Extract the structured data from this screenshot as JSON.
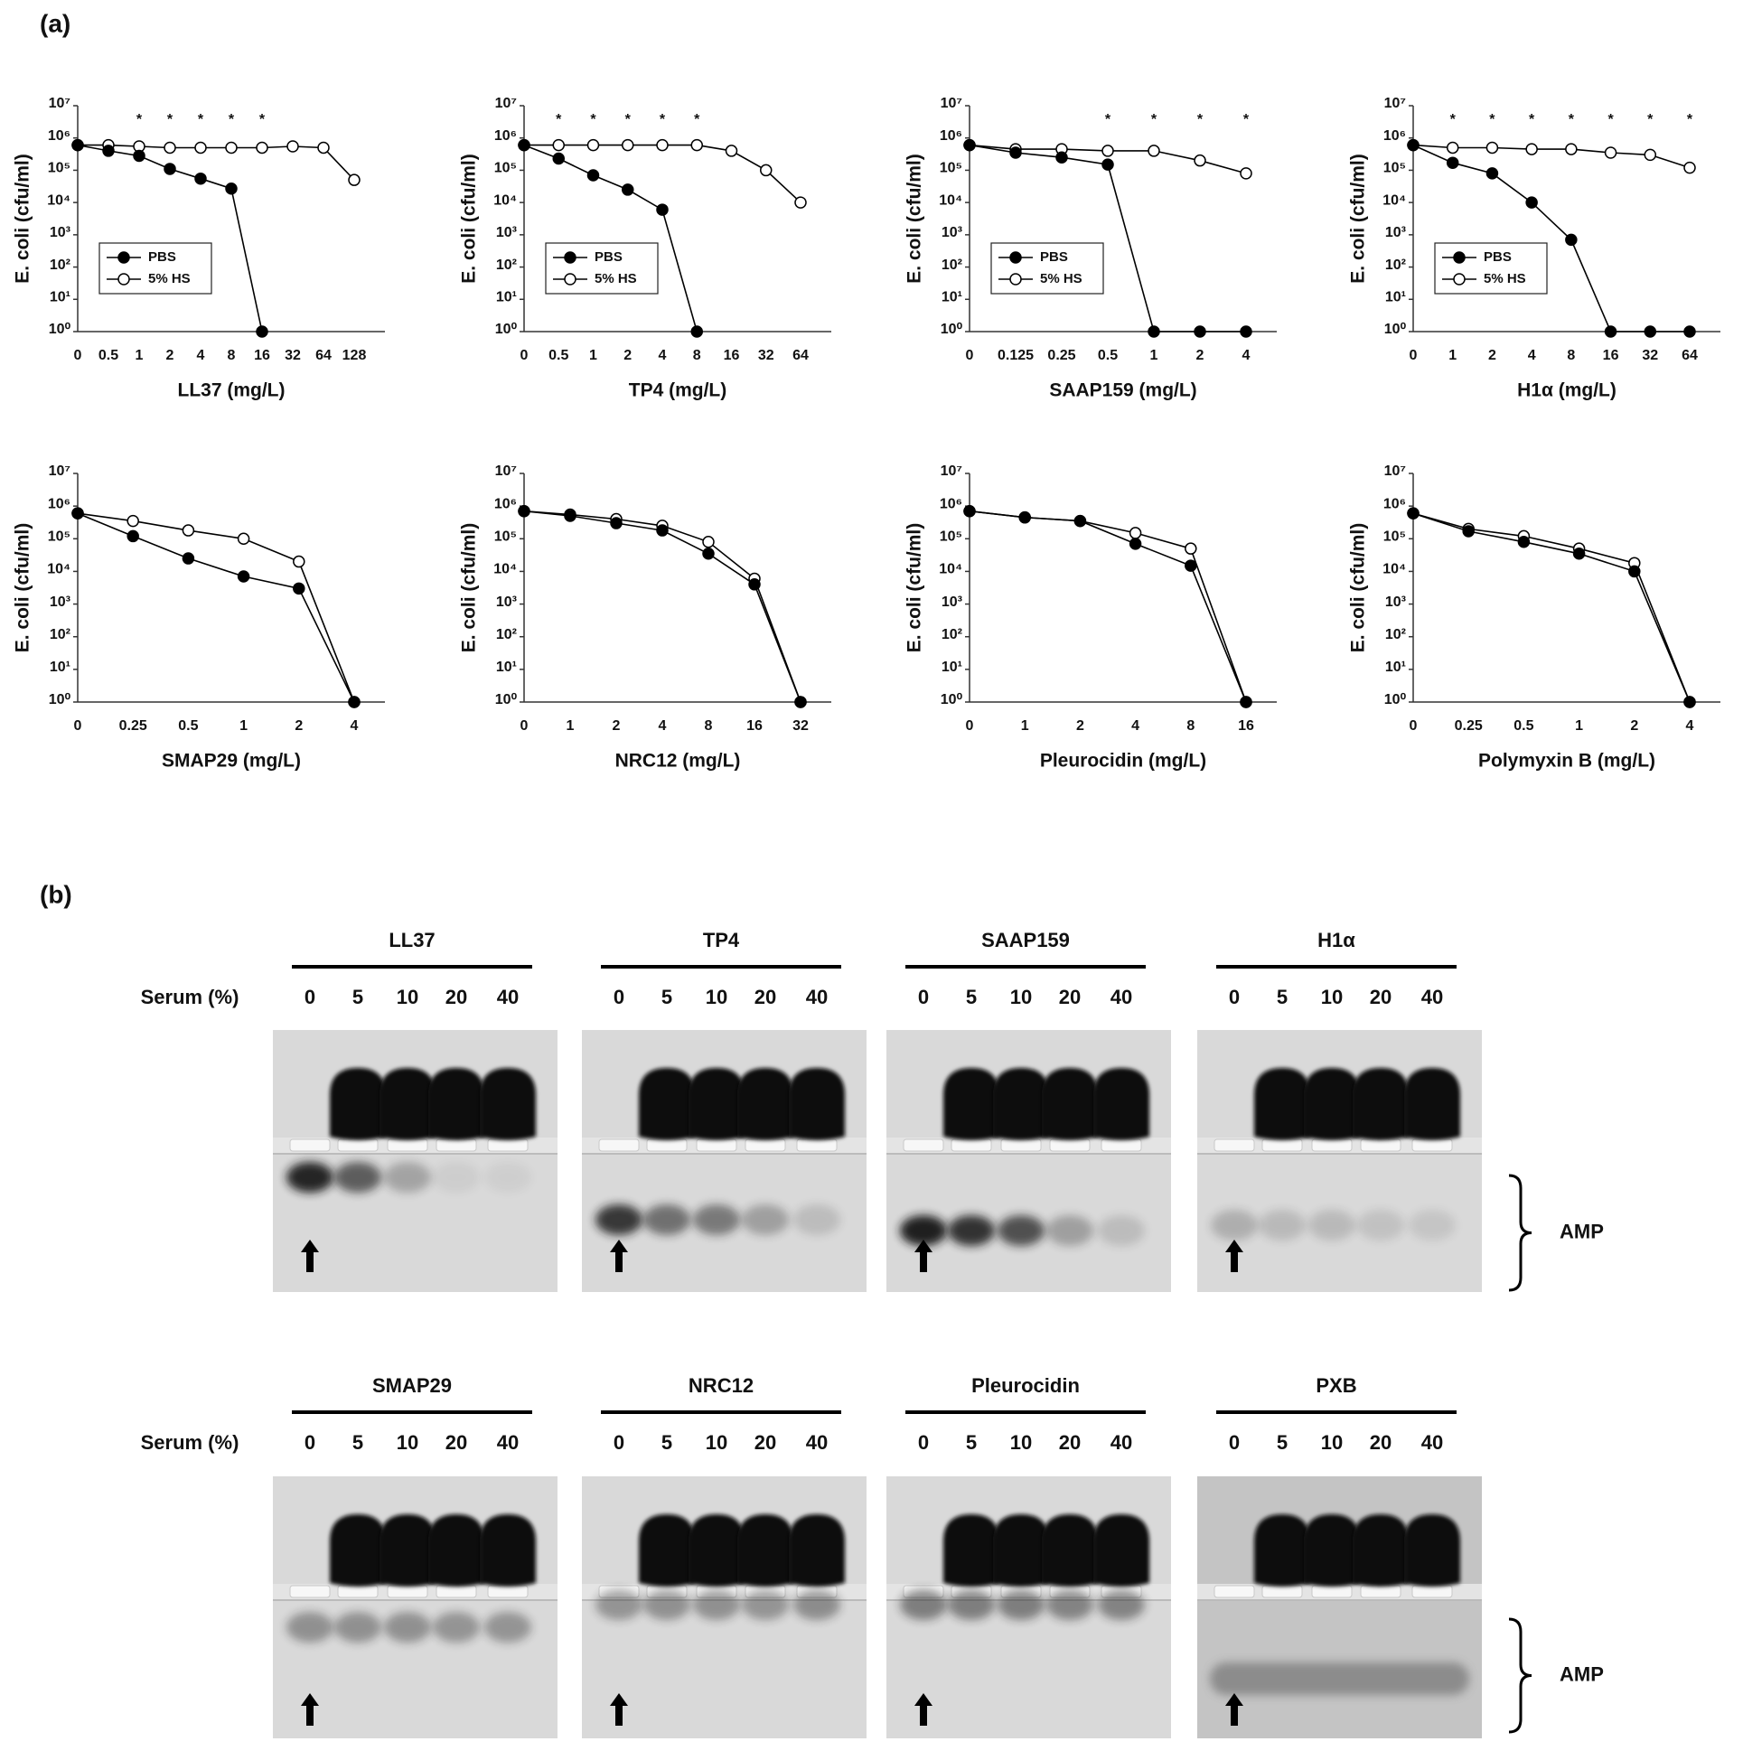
{
  "panel_a": {
    "label": "(a)"
  },
  "chart_data": [
    {
      "type": "line",
      "xlabel": "LL37 (mg/L)",
      "ylabel": "E. coli (cfu/ml)",
      "yscale": "log",
      "legend": "lower left",
      "categories": [
        "0",
        "0.5",
        "1",
        "2",
        "4",
        "8",
        "16",
        "32",
        "64",
        "128"
      ],
      "series": [
        {
          "name": "PBS",
          "color": "#000000",
          "marker_fill": "#000000",
          "values": [
            600000,
            400000,
            280000,
            110000,
            55000,
            27000,
            1,
            null,
            null,
            null
          ]
        },
        {
          "name": "5% HS",
          "color": "#000000",
          "marker_fill": "#ffffff",
          "values": [
            600000,
            600000,
            550000,
            500000,
            500000,
            500000,
            500000,
            550000,
            500000,
            50000
          ]
        }
      ],
      "significance": [
        null,
        null,
        "*",
        "*",
        "*",
        "*",
        "*",
        null,
        null,
        null
      ],
      "ylim": [
        1,
        10000000
      ],
      "yticks": [
        {
          "value": 1,
          "label": "10⁰"
        },
        {
          "value": 10,
          "label": "10¹"
        },
        {
          "value": 100,
          "label": "10²"
        },
        {
          "value": 1000,
          "label": "10³"
        },
        {
          "value": 10000,
          "label": "10⁴"
        },
        {
          "value": 100000,
          "label": "10⁵"
        },
        {
          "value": 1000000,
          "label": "10⁶"
        },
        {
          "value": 10000000,
          "label": "10⁷"
        }
      ]
    },
    {
      "type": "line",
      "xlabel": "TP4 (mg/L)",
      "ylabel": "E. coli (cfu/ml)",
      "yscale": "log",
      "legend": "lower left",
      "categories": [
        "0",
        "0.5",
        "1",
        "2",
        "4",
        "8",
        "16",
        "32",
        "64"
      ],
      "series": [
        {
          "name": "PBS",
          "color": "#000000",
          "marker_fill": "#000000",
          "values": [
            600000,
            230000,
            70000,
            25000,
            6000,
            1,
            null,
            null,
            null
          ]
        },
        {
          "name": "5% HS",
          "color": "#000000",
          "marker_fill": "#ffffff",
          "values": [
            600000,
            600000,
            600000,
            600000,
            600000,
            600000,
            400000,
            100000,
            10000
          ]
        }
      ],
      "significance": [
        null,
        "*",
        "*",
        "*",
        "*",
        "*",
        null,
        null,
        null
      ],
      "ylim": [
        1,
        10000000
      ],
      "yticks": [
        {
          "value": 1,
          "label": "10⁰"
        },
        {
          "value": 10,
          "label": "10¹"
        },
        {
          "value": 100,
          "label": "10²"
        },
        {
          "value": 1000,
          "label": "10³"
        },
        {
          "value": 10000,
          "label": "10⁴"
        },
        {
          "value": 100000,
          "label": "10⁵"
        },
        {
          "value": 1000000,
          "label": "10⁶"
        },
        {
          "value": 10000000,
          "label": "10⁷"
        }
      ]
    },
    {
      "type": "line",
      "xlabel": "SAAP159 (mg/L)",
      "ylabel": "E. coli (cfu/ml)",
      "yscale": "log",
      "legend": "lower left",
      "categories": [
        "0",
        "0.125",
        "0.25",
        "0.5",
        "1",
        "2",
        "4"
      ],
      "series": [
        {
          "name": "PBS",
          "color": "#000000",
          "marker_fill": "#000000",
          "values": [
            600000,
            350000,
            250000,
            150000,
            1,
            1,
            1
          ]
        },
        {
          "name": "5% HS",
          "color": "#000000",
          "marker_fill": "#ffffff",
          "values": [
            600000,
            450000,
            450000,
            400000,
            400000,
            200000,
            80000
          ]
        }
      ],
      "significance": [
        null,
        null,
        null,
        "*",
        "*",
        "*",
        "*"
      ],
      "ylim": [
        1,
        10000000
      ],
      "yticks": [
        {
          "value": 1,
          "label": "10⁰"
        },
        {
          "value": 10,
          "label": "10¹"
        },
        {
          "value": 100,
          "label": "10²"
        },
        {
          "value": 1000,
          "label": "10³"
        },
        {
          "value": 10000,
          "label": "10⁴"
        },
        {
          "value": 100000,
          "label": "10⁵"
        },
        {
          "value": 1000000,
          "label": "10⁶"
        },
        {
          "value": 10000000,
          "label": "10⁷"
        }
      ]
    },
    {
      "type": "line",
      "xlabel": "H1α (mg/L)",
      "ylabel": "E. coli (cfu/ml)",
      "yscale": "log",
      "legend": "lower left",
      "categories": [
        "0",
        "1",
        "2",
        "4",
        "8",
        "16",
        "32",
        "64"
      ],
      "series": [
        {
          "name": "PBS",
          "color": "#000000",
          "marker_fill": "#000000",
          "values": [
            600000,
            170000,
            80000,
            10000,
            700,
            1,
            1,
            1
          ]
        },
        {
          "name": "5% HS",
          "color": "#000000",
          "marker_fill": "#ffffff",
          "values": [
            600000,
            500000,
            500000,
            450000,
            450000,
            350000,
            300000,
            120000
          ]
        }
      ],
      "significance": [
        null,
        "*",
        "*",
        "*",
        "*",
        "*",
        "*",
        "*"
      ],
      "ylim": [
        1,
        10000000
      ],
      "yticks": [
        {
          "value": 1,
          "label": "10⁰"
        },
        {
          "value": 10,
          "label": "10¹"
        },
        {
          "value": 100,
          "label": "10²"
        },
        {
          "value": 1000,
          "label": "10³"
        },
        {
          "value": 10000,
          "label": "10⁴"
        },
        {
          "value": 100000,
          "label": "10⁵"
        },
        {
          "value": 1000000,
          "label": "10⁶"
        },
        {
          "value": 10000000,
          "label": "10⁷"
        }
      ]
    },
    {
      "type": "line",
      "xlabel": "SMAP29 (mg/L)",
      "ylabel": "E. coli (cfu/ml)",
      "yscale": "log",
      "legend": false,
      "categories": [
        "0",
        "0.25",
        "0.5",
        "1",
        "2",
        "4"
      ],
      "series": [
        {
          "color": "#000000",
          "marker_fill": "#000000",
          "values": [
            600000,
            120000,
            25000,
            7000,
            3000,
            1
          ]
        },
        {
          "color": "#000000",
          "marker_fill": "#ffffff",
          "values": [
            600000,
            350000,
            180000,
            100000,
            20000,
            1
          ]
        }
      ],
      "ylim": [
        1,
        10000000
      ],
      "yticks": [
        {
          "value": 1,
          "label": "10⁰"
        },
        {
          "value": 10,
          "label": "10¹"
        },
        {
          "value": 100,
          "label": "10²"
        },
        {
          "value": 1000,
          "label": "10³"
        },
        {
          "value": 10000,
          "label": "10⁴"
        },
        {
          "value": 100000,
          "label": "10⁵"
        },
        {
          "value": 1000000,
          "label": "10⁶"
        },
        {
          "value": 10000000,
          "label": "10⁷"
        }
      ]
    },
    {
      "type": "line",
      "xlabel": "NRC12 (mg/L)",
      "ylabel": "E. coli (cfu/ml)",
      "yscale": "log",
      "legend": false,
      "categories": [
        "0",
        "1",
        "2",
        "4",
        "8",
        "16",
        "32"
      ],
      "series": [
        {
          "color": "#000000",
          "marker_fill": "#000000",
          "values": [
            700000,
            500000,
            300000,
            180000,
            35000,
            4000,
            1
          ]
        },
        {
          "color": "#000000",
          "marker_fill": "#ffffff",
          "values": [
            700000,
            550000,
            400000,
            250000,
            80000,
            6000,
            1
          ]
        }
      ],
      "ylim": [
        1,
        10000000
      ],
      "yticks": [
        {
          "value": 1,
          "label": "10⁰"
        },
        {
          "value": 10,
          "label": "10¹"
        },
        {
          "value": 100,
          "label": "10²"
        },
        {
          "value": 1000,
          "label": "10³"
        },
        {
          "value": 10000,
          "label": "10⁴"
        },
        {
          "value": 100000,
          "label": "10⁵"
        },
        {
          "value": 1000000,
          "label": "10⁶"
        },
        {
          "value": 10000000,
          "label": "10⁷"
        }
      ]
    },
    {
      "type": "line",
      "xlabel": "Pleurocidin (mg/L)",
      "ylabel": "E. coli (cfu/ml)",
      "yscale": "log",
      "legend": false,
      "categories": [
        "0",
        "1",
        "2",
        "4",
        "8",
        "16"
      ],
      "series": [
        {
          "color": "#000000",
          "marker_fill": "#000000",
          "values": [
            700000,
            450000,
            350000,
            70000,
            15000,
            1
          ]
        },
        {
          "color": "#000000",
          "marker_fill": "#ffffff",
          "values": [
            700000,
            450000,
            350000,
            150000,
            50000,
            1
          ]
        }
      ],
      "ylim": [
        1,
        10000000
      ],
      "yticks": [
        {
          "value": 1,
          "label": "10⁰"
        },
        {
          "value": 10,
          "label": "10¹"
        },
        {
          "value": 100,
          "label": "10²"
        },
        {
          "value": 1000,
          "label": "10³"
        },
        {
          "value": 10000,
          "label": "10⁴"
        },
        {
          "value": 100000,
          "label": "10⁵"
        },
        {
          "value": 1000000,
          "label": "10⁶"
        },
        {
          "value": 10000000,
          "label": "10⁷"
        }
      ]
    },
    {
      "type": "line",
      "xlabel": "Polymyxin B (mg/L)",
      "ylabel": "E. coli (cfu/ml)",
      "yscale": "log",
      "legend": false,
      "categories": [
        "0",
        "0.25",
        "0.5",
        "1",
        "2",
        "4"
      ],
      "series": [
        {
          "color": "#000000",
          "marker_fill": "#000000",
          "values": [
            600000,
            170000,
            80000,
            35000,
            10000,
            1
          ]
        },
        {
          "color": "#000000",
          "marker_fill": "#ffffff",
          "values": [
            600000,
            200000,
            120000,
            50000,
            18000,
            1
          ]
        }
      ],
      "ylim": [
        1,
        10000000
      ],
      "yticks": [
        {
          "value": 1,
          "label": "10⁰"
        },
        {
          "value": 10,
          "label": "10¹"
        },
        {
          "value": 100,
          "label": "10²"
        },
        {
          "value": 1000,
          "label": "10³"
        },
        {
          "value": 10000,
          "label": "10⁴"
        },
        {
          "value": 100000,
          "label": "10⁵"
        },
        {
          "value": 1000000,
          "label": "10⁶"
        },
        {
          "value": 10000000,
          "label": "10⁷"
        }
      ]
    }
  ],
  "panel_b": {
    "label": "(b)",
    "serum_label": "Serum (%)",
    "lanes": [
      "0",
      "5",
      "10",
      "20",
      "40"
    ],
    "rows": [
      [
        "LL37",
        "TP4",
        "SAAP159",
        "H1α"
      ],
      [
        "SMAP29",
        "NRC12",
        "Pleurocidin",
        "PXB"
      ]
    ],
    "band_label": "AMP"
  }
}
